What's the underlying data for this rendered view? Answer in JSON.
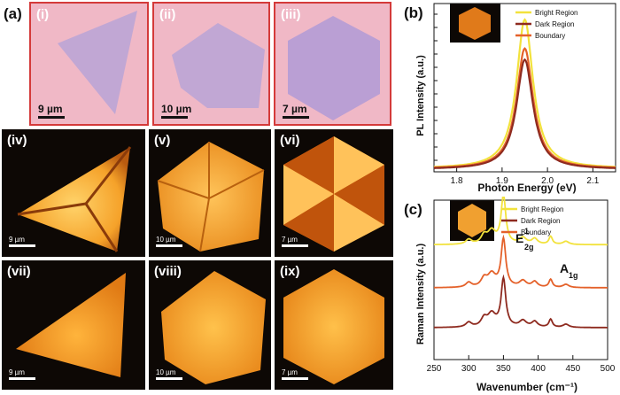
{
  "figure_labels": {
    "a": "(a)",
    "b": "(b)",
    "c": "(c)"
  },
  "tiles": [
    {
      "label": "(i)",
      "scale": "9 µm"
    },
    {
      "label": "(ii)",
      "scale": "10 µm"
    },
    {
      "label": "(iii)",
      "scale": "7 µm"
    },
    {
      "label": "(iv)",
      "scale": "9 µm"
    },
    {
      "label": "(v)",
      "scale": "10 µm"
    },
    {
      "label": "(vi)",
      "scale": "7 µm"
    },
    {
      "label": "(vii)",
      "scale": "9 µm"
    },
    {
      "label": "(viii)",
      "scale": "10 µm"
    },
    {
      "label": "(ix)",
      "scale": "7 µm"
    }
  ],
  "chart_data": [
    {
      "type": "line",
      "title": "(b)",
      "xlabel": "Photon Energy (eV)",
      "ylabel": "PL Intensity (a.u.)",
      "xlim": [
        1.75,
        2.15
      ],
      "ylim": [
        0,
        1.05
      ],
      "xticks": [
        "1.8",
        "1.9",
        "2.0",
        "2.1"
      ],
      "legend": [
        "Bright Region",
        "Dark Region",
        "Boundary"
      ],
      "colors": [
        "#f2e23c",
        "#8e2a1f",
        "#e4612a"
      ],
      "series": [
        {
          "name": "Bright Region",
          "peak_x": 1.95,
          "peak_y": 0.95,
          "width": 0.022,
          "baseline": 0.02
        },
        {
          "name": "Dark Region",
          "peak_x": 1.95,
          "peak_y": 0.7,
          "width": 0.022,
          "baseline": 0.015
        },
        {
          "name": "Boundary",
          "peak_x": 1.95,
          "peak_y": 0.77,
          "width": 0.022,
          "baseline": 0.018
        }
      ]
    },
    {
      "type": "line",
      "title": "(c)",
      "xlabel": "Wavenumber (cm⁻¹)",
      "ylabel": "Raman Intensity (a.u.)",
      "xlim": [
        250,
        500
      ],
      "ylim": [
        0,
        1
      ],
      "xticks": [
        "250",
        "300",
        "350",
        "400",
        "450",
        "500"
      ],
      "legend": [
        "Bright Region",
        "Dark Region",
        "Boundary"
      ],
      "colors": [
        "#f2e23c",
        "#8e2a1f",
        "#e4612a"
      ],
      "annotations": {
        "e2g": "E",
        "e2g_sup": "1",
        "e2g_sub": "2g",
        "a1g": "A",
        "a1g_sub": "1g"
      },
      "peaks": [
        {
          "x": 350,
          "h": 0.3,
          "w": 4
        },
        {
          "x": 333,
          "h": 0.08,
          "w": 7
        },
        {
          "x": 322,
          "h": 0.05,
          "w": 5
        },
        {
          "x": 300,
          "h": 0.03,
          "w": 5
        },
        {
          "x": 378,
          "h": 0.04,
          "w": 6
        },
        {
          "x": 395,
          "h": 0.035,
          "w": 5
        },
        {
          "x": 418,
          "h": 0.05,
          "w": 3
        },
        {
          "x": 440,
          "h": 0.02,
          "w": 5
        }
      ],
      "series": [
        {
          "name": "Bright Region",
          "offset": 0.72,
          "scale": 1.0
        },
        {
          "name": "Boundary",
          "offset": 0.45,
          "scale": 1.0
        },
        {
          "name": "Dark Region",
          "offset": 0.2,
          "scale": 1.0
        }
      ]
    }
  ]
}
